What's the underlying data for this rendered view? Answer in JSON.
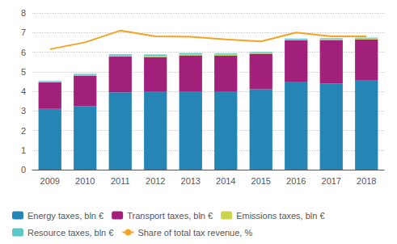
{
  "chart_data": {
    "type": "bar",
    "stacked": true,
    "categories": [
      "2009",
      "2010",
      "2011",
      "2012",
      "2013",
      "2014",
      "2015",
      "2016",
      "2017",
      "2018"
    ],
    "series": [
      {
        "name": "Energy taxes, bln €",
        "type": "bar",
        "color": "#2585b5",
        "values": [
          3.1,
          3.25,
          3.95,
          4.0,
          4.0,
          4.0,
          4.1,
          4.5,
          4.4,
          4.55
        ]
      },
      {
        "name": "Transport taxes, bln €",
        "type": "bar",
        "color": "#a0207a",
        "values": [
          1.35,
          1.55,
          1.82,
          1.75,
          1.83,
          1.82,
          1.82,
          2.1,
          2.22,
          2.1
        ]
      },
      {
        "name": "Emissions taxes, bln €",
        "type": "bar",
        "color": "#c8d44e",
        "values": [
          0.03,
          0.03,
          0.05,
          0.06,
          0.05,
          0.05,
          0.04,
          0.04,
          0.04,
          0.04
        ]
      },
      {
        "name": "Resource taxes, bln €",
        "type": "bar",
        "color": "#5bc8c8",
        "values": [
          0.05,
          0.06,
          0.07,
          0.07,
          0.07,
          0.06,
          0.05,
          0.05,
          0.05,
          0.05
        ]
      },
      {
        "name": "Share of total tax revenue, %",
        "type": "line",
        "color": "#f5a320",
        "values": [
          6.15,
          6.5,
          7.1,
          6.8,
          6.78,
          6.65,
          6.55,
          7.0,
          6.8,
          6.8
        ]
      }
    ],
    "ylim": [
      0,
      8
    ],
    "yticks": [
      0,
      1,
      2,
      3,
      4,
      5,
      6,
      7,
      8
    ],
    "grid": true,
    "legend": "lower left"
  }
}
